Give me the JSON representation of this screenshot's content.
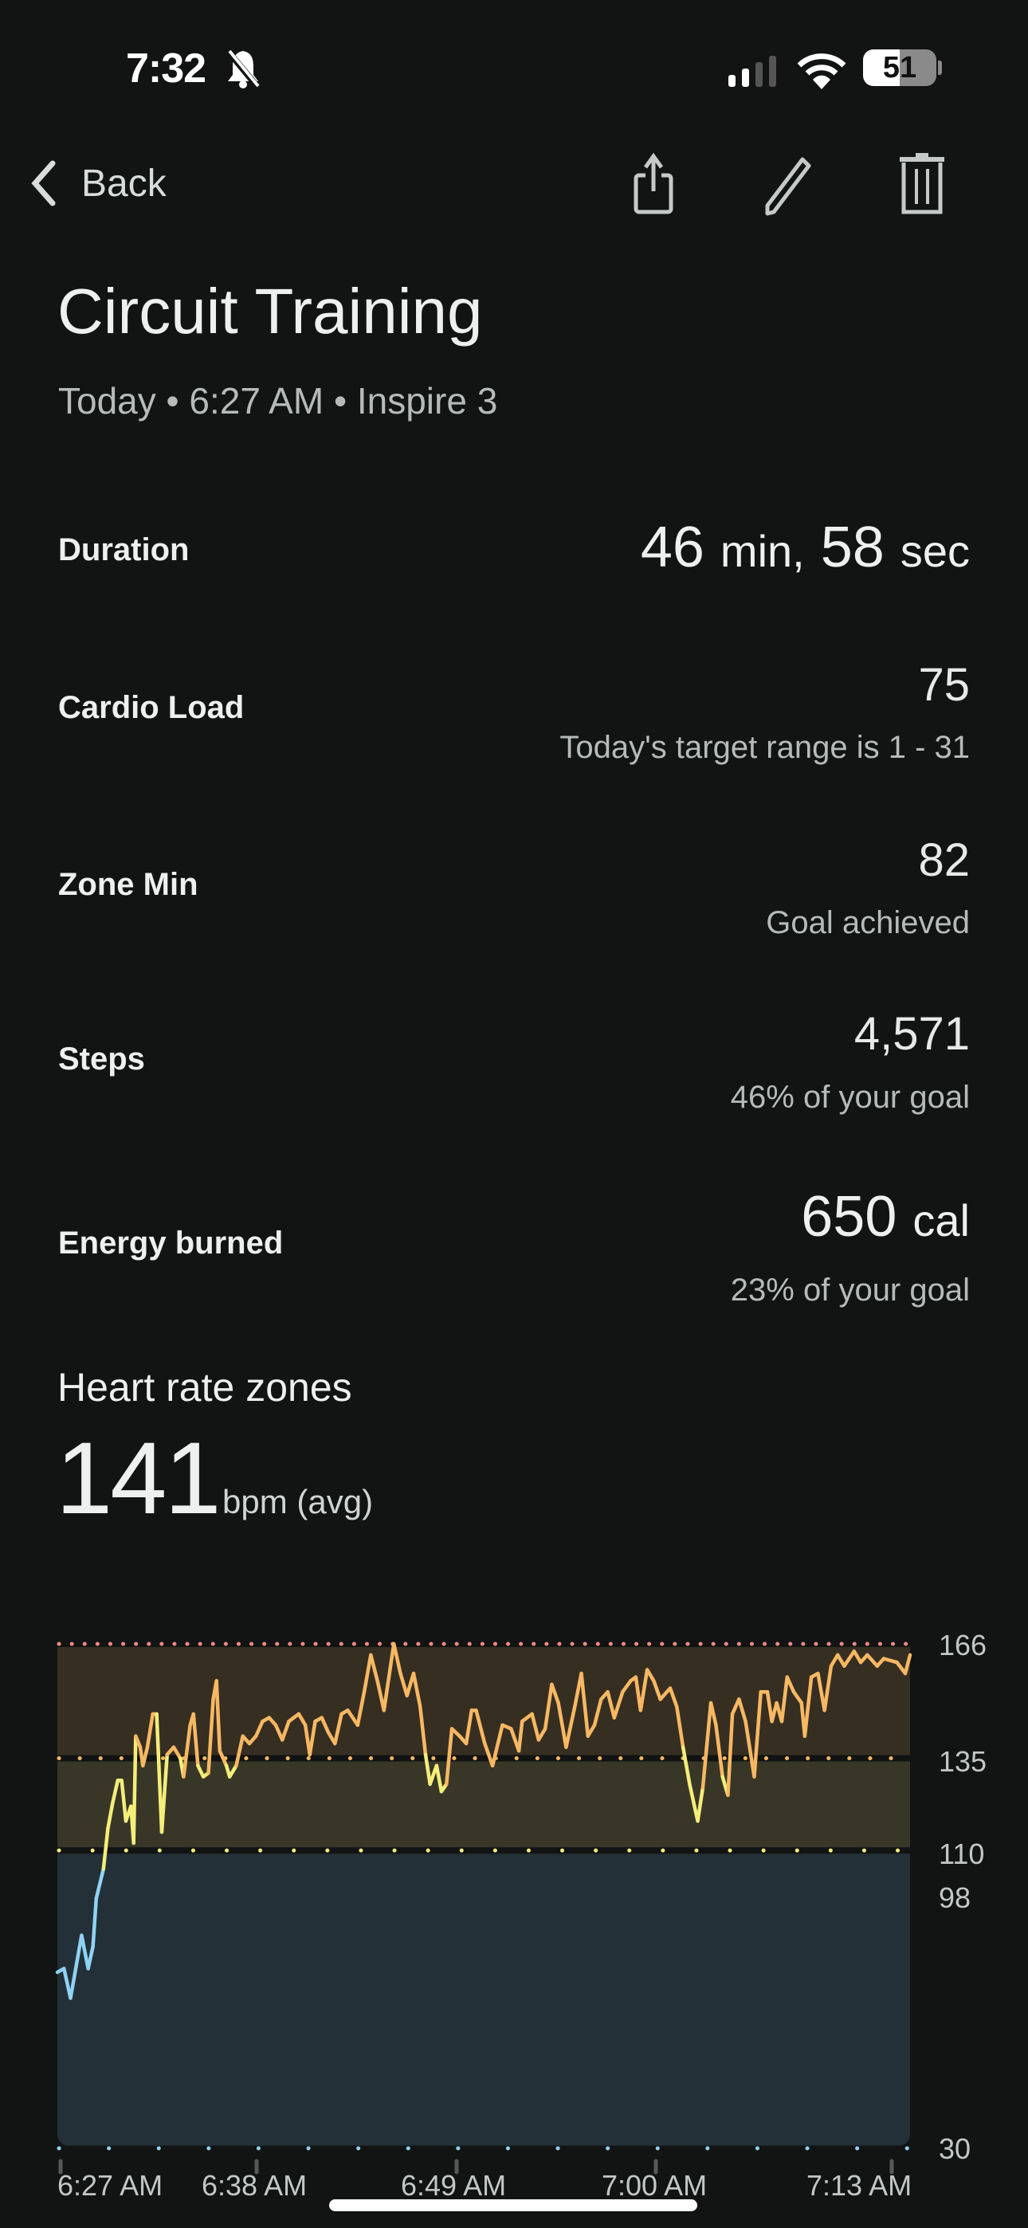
{
  "status_bar": {
    "time": "7:32",
    "battery": "51",
    "icons": [
      "bell-slash-icon",
      "signal-icon",
      "wifi-icon",
      "battery-icon"
    ]
  },
  "nav": {
    "back_label": "Back",
    "icons": [
      "chevron-left-icon",
      "share-icon",
      "pencil-icon",
      "trash-icon"
    ]
  },
  "title": "Circuit Training",
  "subtitle": "Today • 6:27 AM • Inspire 3",
  "stats": {
    "duration": {
      "label": "Duration",
      "min": "46",
      "min_unit": "min,",
      "sec": "58",
      "sec_unit": "sec"
    },
    "cardio_load": {
      "label": "Cardio Load",
      "value": "75",
      "sub": "Today's target range is 1 - 31"
    },
    "zone_min": {
      "label": "Zone Min",
      "value": "82",
      "sub": "Goal achieved"
    },
    "steps": {
      "label": "Steps",
      "value": "4,571",
      "sub": "46% of your goal"
    },
    "energy": {
      "label": "Energy burned",
      "value": "650",
      "unit": "cal",
      "sub": "23% of your goal"
    }
  },
  "heart_rate": {
    "heading": "Heart rate zones",
    "avg": "141",
    "avg_unit": "bpm (avg)"
  },
  "colors": {
    "background": "#111413",
    "zone_peak_line": "#f08a80",
    "zone_cardio": "#f7b863",
    "zone_fatburn": "#f4ee7a",
    "below_zones": "#8fd3f5"
  },
  "chart_data": {
    "type": "line",
    "y_tick_labels": [
      "166",
      "135",
      "110",
      "98",
      "30"
    ],
    "x_tick_labels": [
      "6:27 AM",
      "6:38 AM",
      "6:49 AM",
      "7:00 AM",
      "7:13 AM"
    ],
    "ylim": [
      30,
      166
    ],
    "zone_thresholds": [
      110,
      135,
      166
    ],
    "series": [
      {
        "points": [
          [
            "6:27:00",
            77
          ],
          [
            "6:27:22",
            78
          ],
          [
            "6:27:44",
            70
          ],
          [
            "6:28:21",
            87
          ],
          [
            "6:28:43",
            78
          ],
          [
            "6:28:59",
            84
          ],
          [
            "6:29:10",
            97
          ],
          [
            "6:29:34",
            105
          ],
          [
            "6:29:49",
            116
          ],
          [
            "6:30:05",
            123
          ],
          [
            "6:30:22",
            129
          ],
          [
            "6:30:35",
            129
          ],
          [
            "6:30:49",
            118
          ],
          [
            "6:31:06",
            122
          ],
          [
            "6:31:15",
            112
          ],
          [
            "6:31:22",
            141
          ],
          [
            "6:31:37",
            138
          ],
          [
            "6:31:46",
            133
          ],
          [
            "6:32:01",
            138
          ],
          [
            "6:32:19",
            147
          ],
          [
            "6:32:32",
            147
          ],
          [
            "6:32:49",
            115
          ],
          [
            "6:33:07",
            136
          ],
          [
            "6:33:29",
            138
          ],
          [
            "6:33:51",
            135
          ],
          [
            "6:34:02",
            130
          ],
          [
            "6:34:24",
            144
          ],
          [
            "6:34:35",
            147
          ],
          [
            "6:34:50",
            133
          ],
          [
            "6:35:08",
            130
          ],
          [
            "6:35:25",
            131
          ],
          [
            "6:35:41",
            151
          ],
          [
            "6:35:52",
            156
          ],
          [
            "6:36:03",
            137
          ],
          [
            "6:36:25",
            133
          ],
          [
            "6:36:36",
            130
          ],
          [
            "6:36:58",
            133
          ],
          [
            "6:37:20",
            141
          ],
          [
            "6:37:42",
            139
          ],
          [
            "6:38:04",
            141
          ],
          [
            "6:38:26",
            145
          ],
          [
            "6:38:48",
            146
          ],
          [
            "6:39:10",
            144
          ],
          [
            "6:39:32",
            140
          ],
          [
            "6:39:54",
            145
          ],
          [
            "6:40:27",
            147
          ],
          [
            "6:40:49",
            144
          ],
          [
            "6:41:04",
            136
          ],
          [
            "6:41:22",
            145
          ],
          [
            "6:41:44",
            146
          ],
          [
            "6:42:06",
            142
          ],
          [
            "6:42:28",
            139
          ],
          [
            "6:42:50",
            147
          ],
          [
            "6:43:11",
            148
          ],
          [
            "6:43:44",
            144
          ],
          [
            "6:44:06",
            153
          ],
          [
            "6:44:28",
            163
          ],
          [
            "6:44:50",
            156
          ],
          [
            "6:45:12",
            148
          ],
          [
            "6:45:45",
            166
          ],
          [
            "6:46:07",
            158
          ],
          [
            "6:46:29",
            152
          ],
          [
            "6:46:51",
            158
          ],
          [
            "6:47:13",
            149
          ],
          [
            "6:47:31",
            136
          ],
          [
            "6:47:46",
            128
          ],
          [
            "6:48:08",
            133
          ],
          [
            "6:48:24",
            126
          ],
          [
            "6:48:41",
            128
          ],
          [
            "6:48:59",
            143
          ],
          [
            "6:49:25",
            141
          ],
          [
            "6:49:47",
            139
          ],
          [
            "6:50:05",
            148
          ],
          [
            "6:50:20",
            148
          ],
          [
            "6:50:49",
            139
          ],
          [
            "6:51:15",
            133
          ],
          [
            "6:51:48",
            144
          ],
          [
            "6:52:17",
            143
          ],
          [
            "6:52:43",
            137
          ],
          [
            "6:52:54",
            145
          ],
          [
            "6:53:27",
            147
          ],
          [
            "6:53:49",
            140
          ],
          [
            "6:54:11",
            143
          ],
          [
            "6:54:33",
            155
          ],
          [
            "6:54:55",
            150
          ],
          [
            "6:55:21",
            138
          ],
          [
            "6:55:50",
            149
          ],
          [
            "6:56:12",
            158
          ],
          [
            "6:56:34",
            141
          ],
          [
            "6:56:56",
            144
          ],
          [
            "6:57:18",
            151
          ],
          [
            "6:57:40",
            153
          ],
          [
            "6:58:02",
            146
          ],
          [
            "6:58:30",
            153
          ],
          [
            "6:58:57",
            156
          ],
          [
            "6:59:14",
            157
          ],
          [
            "6:59:30",
            148
          ],
          [
            "6:59:52",
            159
          ],
          [
            "7:00:14",
            156
          ],
          [
            "7:00:36",
            151
          ],
          [
            "7:01:09",
            154
          ],
          [
            "7:01:31",
            149
          ],
          [
            "7:01:52",
            138
          ],
          [
            "7:02:14",
            128
          ],
          [
            "7:02:41",
            118
          ],
          [
            "7:02:58",
            127
          ],
          [
            "7:03:25",
            150
          ],
          [
            "7:03:42",
            144
          ],
          [
            "7:04:04",
            130
          ],
          [
            "7:04:22",
            125
          ],
          [
            "7:04:37",
            147
          ],
          [
            "7:04:59",
            151
          ],
          [
            "7:05:21",
            145
          ],
          [
            "7:05:50",
            130
          ],
          [
            "7:06:12",
            153
          ],
          [
            "7:06:34",
            153
          ],
          [
            "7:06:49",
            145
          ],
          [
            "7:07:05",
            150
          ],
          [
            "7:07:22",
            145
          ],
          [
            "7:07:40",
            157
          ],
          [
            "7:08:02",
            153
          ],
          [
            "7:08:28",
            150
          ],
          [
            "7:08:39",
            141
          ],
          [
            "7:09:01",
            157
          ],
          [
            "7:09:23",
            158
          ],
          [
            "7:09:45",
            148
          ],
          [
            "7:10:07",
            160
          ],
          [
            "7:10:29",
            163
          ],
          [
            "7:10:51",
            160
          ],
          [
            "7:11:24",
            164
          ],
          [
            "7:11:46",
            161
          ],
          [
            "7:12:08",
            163
          ],
          [
            "7:12:41",
            160
          ],
          [
            "7:13:03",
            162
          ],
          [
            "7:13:47",
            161
          ],
          [
            "7:14:15",
            158
          ],
          [
            "7:14:31",
            163
          ]
        ]
      }
    ]
  }
}
